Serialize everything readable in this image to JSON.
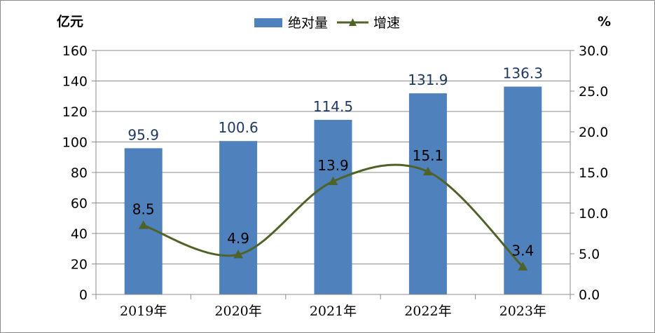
{
  "chart_data": {
    "type": "bar",
    "categories": [
      "2019年",
      "2020年",
      "2021年",
      "2022年",
      "2023年"
    ],
    "series": [
      {
        "name": "绝对量",
        "type": "bar",
        "axis": "left",
        "values": [
          95.9,
          100.6,
          114.5,
          131.9,
          136.3
        ]
      },
      {
        "name": "增速",
        "type": "line",
        "axis": "right",
        "marker": "triangle",
        "smooth": true,
        "values": [
          8.5,
          4.9,
          13.9,
          15.1,
          3.4
        ]
      }
    ],
    "left_unit": "亿元",
    "right_unit": "%",
    "y_left": {
      "min": 0,
      "max": 160,
      "step": 20,
      "ticks": [
        "0",
        "20",
        "40",
        "60",
        "80",
        "100",
        "120",
        "140",
        "160"
      ]
    },
    "y_right": {
      "min": 0,
      "max": 30,
      "step": 5,
      "ticks": [
        "0.0",
        "5.0",
        "10.0",
        "15.0",
        "20.0",
        "25.0",
        "30.0"
      ]
    },
    "bar_labels": [
      "95.9",
      "100.6",
      "114.5",
      "131.9",
      "136.3"
    ],
    "line_labels": [
      "8.5",
      "4.9",
      "13.9",
      "15.1",
      "3.4"
    ],
    "grid": true,
    "legend_position": "top-center",
    "colors": {
      "bar": "#4f81bd",
      "line": "#4f6228",
      "grid": "#8c8c8c",
      "bar_label": "#1f3864"
    }
  }
}
